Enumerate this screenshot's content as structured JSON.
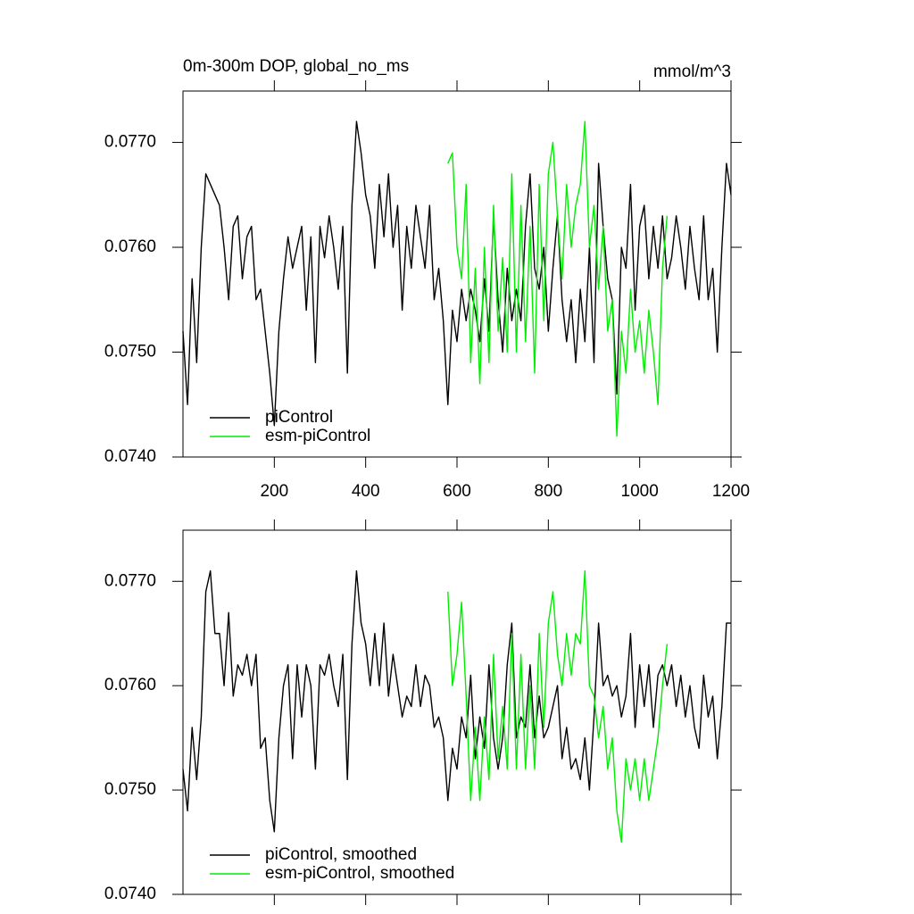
{
  "chart_data": [
    {
      "type": "line",
      "title": "0m-300m DOP, global_no_ms",
      "units_label": "mmol/m^3",
      "xlim": [
        0,
        1200
      ],
      "xticks": [
        200,
        400,
        600,
        800,
        1000,
        1200
      ],
      "ylim": [
        0.074,
        0.07749
      ],
      "yticks": [
        {
          "value": 0.074,
          "label": "0.0740"
        },
        {
          "value": 0.075,
          "label": "0.0750"
        },
        {
          "value": 0.076,
          "label": "0.0760"
        },
        {
          "value": 0.077,
          "label": "0.0770"
        }
      ],
      "legend": "lower left",
      "series": [
        {
          "name": "piControl",
          "color": "#000000",
          "x": [
            0,
            10,
            20,
            30,
            40,
            50,
            60,
            70,
            80,
            90,
            100,
            110,
            120,
            130,
            140,
            150,
            160,
            170,
            180,
            190,
            200,
            210,
            220,
            230,
            240,
            250,
            260,
            270,
            280,
            290,
            300,
            310,
            320,
            330,
            340,
            350,
            360,
            370,
            380,
            390,
            400,
            410,
            420,
            430,
            440,
            450,
            460,
            470,
            480,
            490,
            500,
            510,
            520,
            530,
            540,
            550,
            560,
            570,
            580,
            590,
            600,
            610,
            620,
            630,
            640,
            650,
            660,
            670,
            680,
            690,
            700,
            710,
            720,
            730,
            740,
            750,
            760,
            770,
            780,
            790,
            800,
            810,
            820,
            830,
            840,
            850,
            860,
            870,
            880,
            890,
            900,
            910,
            920,
            930,
            940,
            950,
            960,
            970,
            980,
            990,
            1000,
            1010,
            1020,
            1030,
            1040,
            1050,
            1060,
            1070,
            1080,
            1090,
            1100,
            1110,
            1120,
            1130,
            1140,
            1150,
            1160,
            1170,
            1180,
            1190,
            1200
          ],
          "values": [
            0.0752,
            0.0745,
            0.0757,
            0.0749,
            0.076,
            0.0767,
            0.0766,
            0.0765,
            0.0764,
            0.076,
            0.0755,
            0.0762,
            0.0763,
            0.0757,
            0.0761,
            0.0762,
            0.0755,
            0.0756,
            0.0752,
            0.0748,
            0.0743,
            0.0752,
            0.0757,
            0.0761,
            0.0758,
            0.076,
            0.0762,
            0.0754,
            0.0761,
            0.0749,
            0.0762,
            0.0759,
            0.0763,
            0.076,
            0.0756,
            0.0762,
            0.0748,
            0.0764,
            0.0772,
            0.0769,
            0.0765,
            0.0763,
            0.0758,
            0.0766,
            0.0761,
            0.0767,
            0.076,
            0.0764,
            0.0754,
            0.0762,
            0.0758,
            0.0764,
            0.0761,
            0.0758,
            0.0764,
            0.0755,
            0.0758,
            0.0753,
            0.0745,
            0.0754,
            0.0751,
            0.0756,
            0.0753,
            0.0756,
            0.0754,
            0.0751,
            0.0757,
            0.0752,
            0.0763,
            0.0755,
            0.075,
            0.0758,
            0.0753,
            0.0756,
            0.0753,
            0.0762,
            0.0767,
            0.0758,
            0.0756,
            0.076,
            0.0752,
            0.0758,
            0.0763,
            0.0755,
            0.0751,
            0.0755,
            0.0749,
            0.0756,
            0.0751,
            0.076,
            0.0749,
            0.0768,
            0.0762,
            0.0757,
            0.0755,
            0.0746,
            0.076,
            0.0758,
            0.0766,
            0.0754,
            0.0762,
            0.0764,
            0.0757,
            0.0762,
            0.0758,
            0.0763,
            0.0757,
            0.0759,
            0.0763,
            0.076,
            0.0756,
            0.0762,
            0.0758,
            0.0755,
            0.0763,
            0.0755,
            0.0758,
            0.075,
            0.076,
            0.0768,
            0.0765
          ]
        },
        {
          "name": "esm-piControl",
          "color": "#00ee00",
          "x": [
            580,
            590,
            600,
            610,
            620,
            630,
            640,
            650,
            660,
            670,
            680,
            690,
            700,
            710,
            720,
            730,
            740,
            750,
            760,
            770,
            780,
            790,
            800,
            810,
            820,
            830,
            840,
            850,
            860,
            870,
            880,
            890,
            900,
            910,
            920,
            930,
            940,
            950,
            960,
            970,
            980,
            990,
            1000,
            1010,
            1020,
            1030,
            1040,
            1050,
            1060
          ],
          "values": [
            0.0768,
            0.0769,
            0.076,
            0.0757,
            0.0766,
            0.0749,
            0.0758,
            0.0747,
            0.076,
            0.0749,
            0.0764,
            0.0752,
            0.0759,
            0.075,
            0.0767,
            0.075,
            0.0764,
            0.0751,
            0.0762,
            0.0748,
            0.0766,
            0.0753,
            0.0767,
            0.077,
            0.0763,
            0.0757,
            0.0766,
            0.076,
            0.0764,
            0.0766,
            0.0772,
            0.076,
            0.0764,
            0.0756,
            0.0762,
            0.0752,
            0.0755,
            0.0742,
            0.0752,
            0.0748,
            0.0756,
            0.075,
            0.0753,
            0.0748,
            0.0754,
            0.075,
            0.0745,
            0.0758,
            0.0763
          ]
        }
      ]
    },
    {
      "type": "line",
      "xlim": [
        0,
        1200
      ],
      "ylim": [
        0.074,
        0.07749
      ],
      "yticks": [
        {
          "value": 0.074,
          "label": "0.0740"
        },
        {
          "value": 0.075,
          "label": "0.0750"
        },
        {
          "value": 0.076,
          "label": "0.0760"
        },
        {
          "value": 0.077,
          "label": "0.0770"
        }
      ],
      "legend": "lower left",
      "series": [
        {
          "name": "piControl, smoothed",
          "color": "#000000",
          "x": [
            0,
            10,
            20,
            30,
            40,
            50,
            60,
            70,
            80,
            90,
            100,
            110,
            120,
            130,
            140,
            150,
            160,
            170,
            180,
            190,
            200,
            210,
            220,
            230,
            240,
            250,
            260,
            270,
            280,
            290,
            300,
            310,
            320,
            330,
            340,
            350,
            360,
            370,
            380,
            390,
            400,
            410,
            420,
            430,
            440,
            450,
            460,
            470,
            480,
            490,
            500,
            510,
            520,
            530,
            540,
            550,
            560,
            570,
            580,
            590,
            600,
            610,
            620,
            630,
            640,
            650,
            660,
            670,
            680,
            690,
            700,
            710,
            720,
            730,
            740,
            750,
            760,
            770,
            780,
            790,
            800,
            810,
            820,
            830,
            840,
            850,
            860,
            870,
            880,
            890,
            900,
            910,
            920,
            930,
            940,
            950,
            960,
            970,
            980,
            990,
            1000,
            1010,
            1020,
            1030,
            1040,
            1050,
            1060,
            1070,
            1080,
            1090,
            1100,
            1110,
            1120,
            1130,
            1140,
            1150,
            1160,
            1170,
            1180,
            1190,
            1200
          ],
          "values": [
            0.0752,
            0.0748,
            0.0756,
            0.0751,
            0.0757,
            0.0769,
            0.0771,
            0.0765,
            0.0765,
            0.076,
            0.0767,
            0.0759,
            0.0762,
            0.0761,
            0.0763,
            0.076,
            0.0763,
            0.0754,
            0.0755,
            0.0749,
            0.0746,
            0.0755,
            0.076,
            0.0762,
            0.0753,
            0.0762,
            0.0757,
            0.0762,
            0.076,
            0.0752,
            0.0762,
            0.0761,
            0.0763,
            0.076,
            0.0758,
            0.0763,
            0.0751,
            0.0764,
            0.0771,
            0.0766,
            0.0764,
            0.076,
            0.0765,
            0.076,
            0.0766,
            0.0759,
            0.0763,
            0.076,
            0.0757,
            0.0759,
            0.0758,
            0.0762,
            0.0758,
            0.0761,
            0.076,
            0.0756,
            0.0757,
            0.0755,
            0.0749,
            0.0754,
            0.0752,
            0.0757,
            0.0755,
            0.0761,
            0.0753,
            0.0757,
            0.0754,
            0.0762,
            0.0755,
            0.0752,
            0.0755,
            0.0762,
            0.0766,
            0.0755,
            0.0757,
            0.0756,
            0.0762,
            0.0755,
            0.0759,
            0.0755,
            0.0756,
            0.0758,
            0.076,
            0.0753,
            0.0756,
            0.0752,
            0.0753,
            0.0751,
            0.0755,
            0.075,
            0.0757,
            0.0766,
            0.076,
            0.0761,
            0.0759,
            0.076,
            0.0757,
            0.0759,
            0.0765,
            0.0756,
            0.0762,
            0.0758,
            0.0762,
            0.0756,
            0.0761,
            0.0762,
            0.076,
            0.0762,
            0.0758,
            0.0761,
            0.0757,
            0.076,
            0.0756,
            0.0754,
            0.0761,
            0.0757,
            0.0759,
            0.0753,
            0.0758,
            0.0766,
            0.0766
          ]
        },
        {
          "name": "esm-piControl, smoothed",
          "color": "#00ee00",
          "x": [
            580,
            590,
            600,
            610,
            620,
            630,
            640,
            650,
            660,
            670,
            680,
            690,
            700,
            710,
            720,
            730,
            740,
            750,
            760,
            770,
            780,
            790,
            800,
            810,
            820,
            830,
            840,
            850,
            860,
            870,
            880,
            890,
            900,
            910,
            920,
            930,
            940,
            950,
            960,
            970,
            980,
            990,
            1000,
            1010,
            1020,
            1030,
            1040,
            1050,
            1060
          ],
          "values": [
            0.0769,
            0.076,
            0.0763,
            0.0768,
            0.0759,
            0.0749,
            0.0756,
            0.0749,
            0.0757,
            0.0751,
            0.0763,
            0.0753,
            0.0758,
            0.0752,
            0.0765,
            0.0752,
            0.0763,
            0.0752,
            0.076,
            0.0752,
            0.0765,
            0.0756,
            0.0766,
            0.0769,
            0.0763,
            0.076,
            0.0765,
            0.0761,
            0.0765,
            0.0764,
            0.0771,
            0.076,
            0.0759,
            0.0755,
            0.0758,
            0.0752,
            0.0755,
            0.0748,
            0.0745,
            0.0753,
            0.075,
            0.0753,
            0.0749,
            0.0753,
            0.0749,
            0.0752,
            0.0755,
            0.076,
            0.0764
          ]
        }
      ]
    }
  ]
}
